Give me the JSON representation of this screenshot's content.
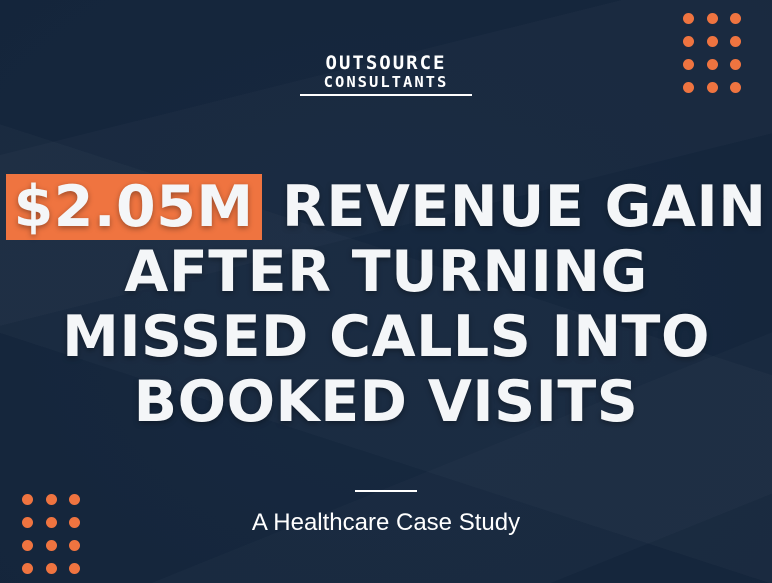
{
  "logo": {
    "line1": "OUTSOURCE",
    "line2": "CONSULTANTS"
  },
  "headline": {
    "highlight": "$2.05M",
    "line1_rest": " REVENUE GAIN",
    "line2": "AFTER TURNING",
    "line3": "MISSED CALLS INTO",
    "line4": "BOOKED VISITS"
  },
  "subtitle": "A Healthcare Case Study",
  "colors": {
    "background": "#1a2c44",
    "accent": "#ef7440",
    "text": "#ffffff"
  }
}
